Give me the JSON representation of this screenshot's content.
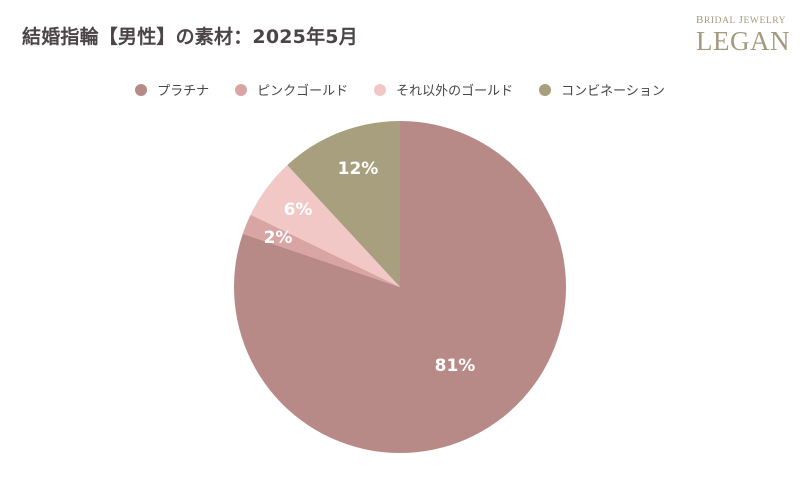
{
  "header": {
    "title": "結婚指輪【男性】の素材：2025年5月"
  },
  "logo": {
    "top_initial_1": "B",
    "top_rest_1": "RIDAL ",
    "top_initial_2": "J",
    "top_rest_2": "EWELRY",
    "main": "LEGAN"
  },
  "chart_data": {
    "type": "pie",
    "title": "結婚指輪【男性】の素材：2025年5月",
    "legend_position": "top",
    "start_angle": "12 o'clock, clockwise",
    "slices": [
      {
        "name": "プラチナ",
        "value": 81,
        "label": "81%",
        "color": "#b88a87"
      },
      {
        "name": "ピンクゴールド",
        "value": 2,
        "label": "2%",
        "color": "#d8a5a4"
      },
      {
        "name": "それ以外のゴールド",
        "value": 6,
        "label": "6%",
        "color": "#f2c8c7"
      },
      {
        "name": "コンビネーション",
        "value": 12,
        "label": "12%",
        "color": "#a89f7e"
      }
    ]
  }
}
